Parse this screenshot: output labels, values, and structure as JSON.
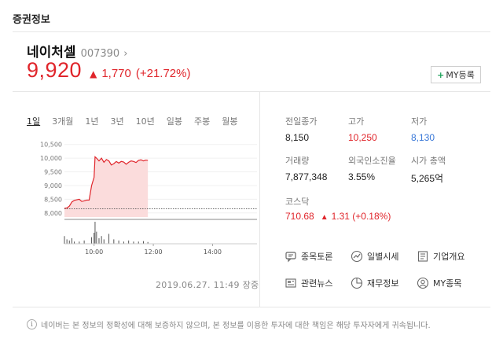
{
  "section": {
    "title": "증권정보"
  },
  "stock": {
    "name": "네이처셀",
    "code": "007390",
    "chevron": "›",
    "price": "9,920",
    "change_icon": "up-triangle-icon",
    "change_symbol": "▲",
    "change_amount": "1,770",
    "change_percent": "(+21.72%)"
  },
  "my_button": {
    "plus": "+",
    "label": "MY등록"
  },
  "periods": [
    "1일",
    "3개월",
    "1년",
    "3년",
    "10년",
    "일봉",
    "주봉",
    "월봉"
  ],
  "active_period": "1일",
  "stats": {
    "prev_close_label": "전일종가",
    "prev_close": "8,150",
    "high_label": "고가",
    "high": "10,250",
    "low_label": "저가",
    "low": "8,130",
    "volume_label": "거래량",
    "volume": "7,877,348",
    "foreign_label": "외국인소진율",
    "foreign": "3.55%",
    "market_cap_label": "시가 총액",
    "market_cap": "5,265억"
  },
  "market": {
    "label": "코스닥",
    "value": "710.68",
    "change_symbol": "▲",
    "change": "1.31 (+0.18%)"
  },
  "links": {
    "discussion": "종목토론",
    "daily": "일별시세",
    "company": "기업개요",
    "news": "관련뉴스",
    "financials": "재무정보",
    "my_stocks": "MY종목"
  },
  "timestamp": "2019.06.27. 11:49 장중",
  "footer": {
    "info_symbol": "i",
    "note": "네이버는 본 정보의 정확성에 대해 보증하지 않으며, 본 정보를 이용한 투자에 대한 책임은 해당 투자자에게 귀속됩니다."
  },
  "colors": {
    "up": "#e0252b",
    "down": "#3a78d8",
    "accent_green": "#1da35a"
  },
  "chart_data": {
    "type": "area",
    "y_ticks": [
      "10,500",
      "10,000",
      "9,500",
      "9,000",
      "8,500",
      "8,000"
    ],
    "x_ticks": [
      "10:00",
      "12:00",
      "14:00"
    ],
    "ylim": [
      7850,
      10550
    ],
    "time_range": [
      "09:00",
      "15:30"
    ],
    "prev_close": 8150,
    "series": [
      {
        "values": [
          [
            "09:00",
            8170
          ],
          [
            "09:05",
            8180
          ],
          [
            "09:10",
            8250
          ],
          [
            "09:15",
            8400
          ],
          [
            "09:20",
            8460
          ],
          [
            "09:25",
            8480
          ],
          [
            "09:30",
            8500
          ],
          [
            "09:35",
            8420
          ],
          [
            "09:40",
            8440
          ],
          [
            "09:45",
            8470
          ],
          [
            "09:50",
            8470
          ],
          [
            "09:55",
            9000
          ],
          [
            "10:00",
            9300
          ],
          [
            "10:02",
            10050
          ],
          [
            "10:05",
            10000
          ],
          [
            "10:10",
            9900
          ],
          [
            "10:15",
            10000
          ],
          [
            "10:20",
            9850
          ],
          [
            "10:25",
            9950
          ],
          [
            "10:30",
            9900
          ],
          [
            "10:35",
            9750
          ],
          [
            "10:40",
            9800
          ],
          [
            "10:45",
            9880
          ],
          [
            "10:50",
            9820
          ],
          [
            "10:55",
            9880
          ],
          [
            "11:00",
            9860
          ],
          [
            "11:05",
            9780
          ],
          [
            "11:10",
            9850
          ],
          [
            "11:15",
            9900
          ],
          [
            "11:20",
            9880
          ],
          [
            "11:25",
            9840
          ],
          [
            "11:30",
            9920
          ],
          [
            "11:35",
            9940
          ],
          [
            "11:40",
            9900
          ],
          [
            "11:45",
            9930
          ],
          [
            "11:49",
            9920
          ]
        ]
      }
    ],
    "volume": [
      [
        "09:00",
        0.35
      ],
      [
        "09:05",
        0.2
      ],
      [
        "09:10",
        0.15
      ],
      [
        "09:15",
        0.25
      ],
      [
        "09:20",
        0.1
      ],
      [
        "09:30",
        0.1
      ],
      [
        "09:40",
        0.15
      ],
      [
        "09:55",
        0.3
      ],
      [
        "10:00",
        0.5
      ],
      [
        "10:02",
        1.0
      ],
      [
        "10:05",
        0.55
      ],
      [
        "10:10",
        0.25
      ],
      [
        "10:15",
        0.35
      ],
      [
        "10:20",
        0.2
      ],
      [
        "10:30",
        0.45
      ],
      [
        "10:40",
        0.2
      ],
      [
        "10:50",
        0.15
      ],
      [
        "11:00",
        0.1
      ],
      [
        "11:10",
        0.15
      ],
      [
        "11:20",
        0.1
      ],
      [
        "11:30",
        0.1
      ],
      [
        "11:40",
        0.12
      ],
      [
        "11:49",
        0.08
      ]
    ]
  }
}
